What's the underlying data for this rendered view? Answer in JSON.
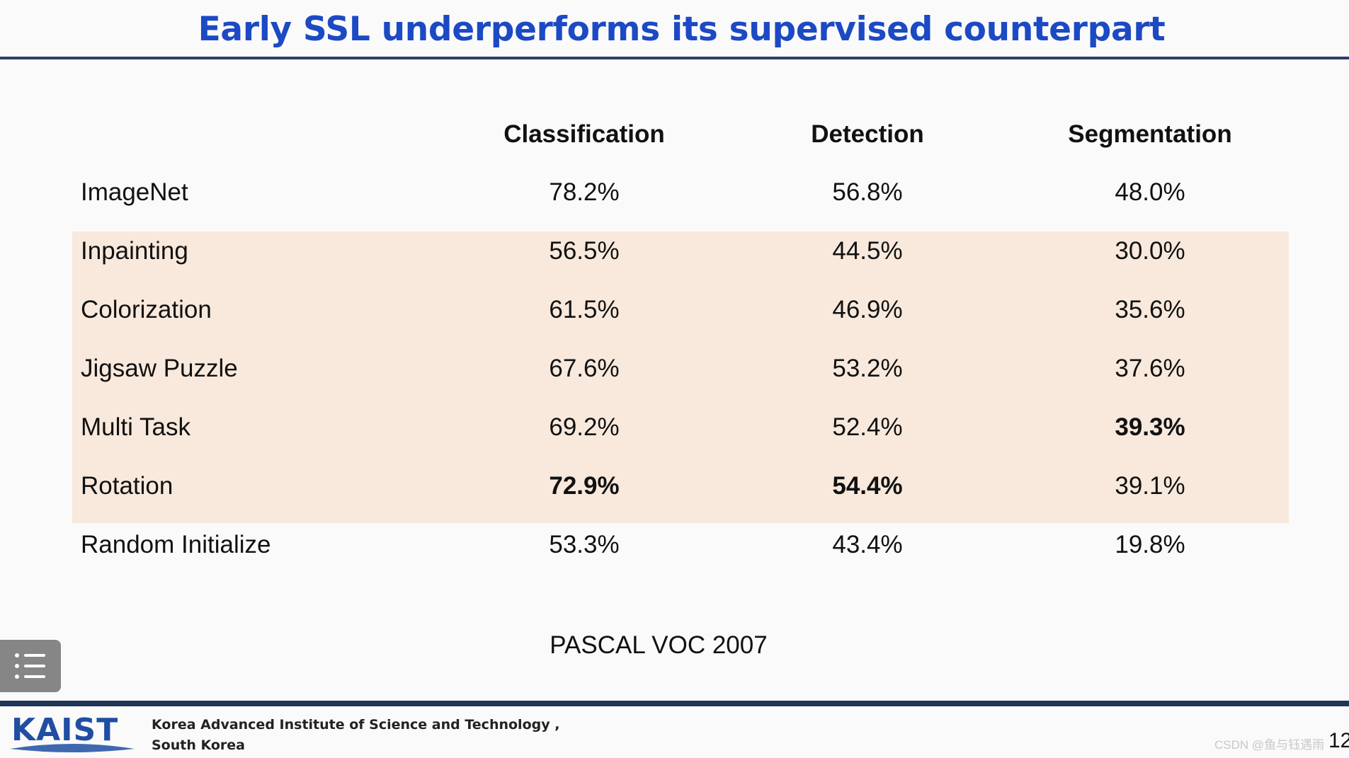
{
  "slide": {
    "title": "Early SSL underperforms its supervised counterpart",
    "caption": "PASCAL VOC 2007",
    "accent_color": "#1c49c4",
    "highlight_color": "#f8e9dc"
  },
  "table": {
    "columns": [
      "Classification",
      "Detection",
      "Segmentation"
    ],
    "rows": [
      {
        "label": "ImageNet",
        "values": [
          "78.2%",
          "56.8%",
          "48.0%"
        ],
        "bold": [
          false,
          false,
          false
        ],
        "highlighted": false
      },
      {
        "label": "Inpainting",
        "values": [
          "56.5%",
          "44.5%",
          "30.0%"
        ],
        "bold": [
          false,
          false,
          false
        ],
        "highlighted": true
      },
      {
        "label": "Colorization",
        "values": [
          "61.5%",
          "46.9%",
          "35.6%"
        ],
        "bold": [
          false,
          false,
          false
        ],
        "highlighted": true
      },
      {
        "label": "Jigsaw Puzzle",
        "values": [
          "67.6%",
          "53.2%",
          "37.6%"
        ],
        "bold": [
          false,
          false,
          false
        ],
        "highlighted": true
      },
      {
        "label": "Multi Task",
        "values": [
          "69.2%",
          "52.4%",
          "39.3%"
        ],
        "bold": [
          false,
          false,
          true
        ],
        "highlighted": true
      },
      {
        "label": "Rotation",
        "values": [
          "72.9%",
          "54.4%",
          "39.1%"
        ],
        "bold": [
          true,
          true,
          false
        ],
        "highlighted": true
      },
      {
        "label": "Random Initialize",
        "values": [
          "53.3%",
          "43.4%",
          "19.8%"
        ],
        "bold": [
          false,
          false,
          false
        ],
        "highlighted": false
      }
    ]
  },
  "footer": {
    "logo_text": "KAIST",
    "institution_line1": "Korea Advanced Institute of Science and Technology ,",
    "institution_line2": "South Korea",
    "watermark": "CSDN @鱼与钰遇雨",
    "page_number": "12"
  },
  "icons": {
    "menu": "list-menu-icon"
  }
}
